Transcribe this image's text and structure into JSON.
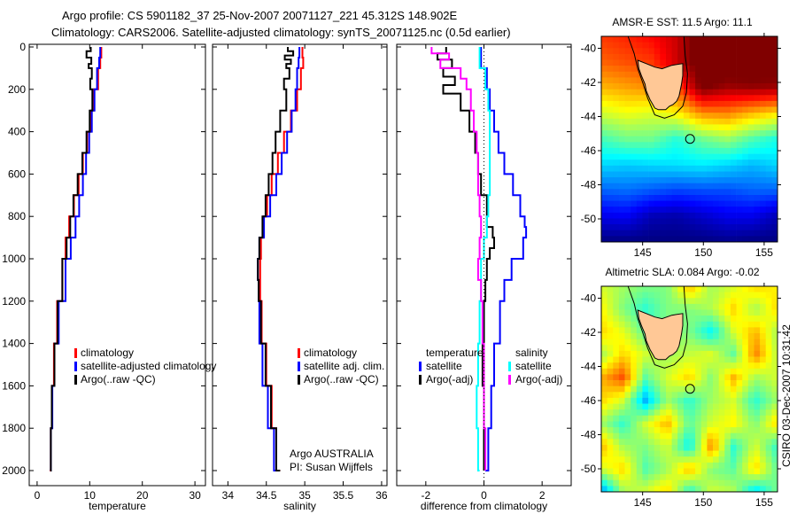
{
  "title": {
    "line1": "Argo profile: CS 5901182_37 25-Nov-2007 20071127_221 45.312S 148.902E",
    "line2": "Climatology: CARS2006. Satellite-adjusted climatology: synTS_20071125.nc (0.5d earlier)"
  },
  "credit": "CSIRO 03-Dec-2007 10:31:42",
  "chart_data": [
    {
      "type": "line",
      "xlabel": "temperature",
      "xlim": [
        -1.5,
        32
      ],
      "ylim": [
        0,
        2050
      ],
      "xticks": [
        "0",
        "10",
        "20",
        "30"
      ],
      "yticks": [
        "0",
        "200",
        "400",
        "600",
        "800",
        "1000",
        "1200",
        "1400",
        "1600",
        "1800",
        "2000"
      ],
      "legend": [
        "climatology",
        "satellite-adjusted climatology",
        "Argo(..raw -QC)"
      ],
      "series": [
        {
          "name": "climatology",
          "color": "#ff0000",
          "depth": [
            0,
            50,
            100,
            200,
            300,
            400,
            500,
            600,
            700,
            800,
            900,
            1000,
            1200,
            1400,
            1600,
            1800,
            2000
          ],
          "values": [
            12.2,
            12,
            11.6,
            10.8,
            10.2,
            9.5,
            8.7,
            7.9,
            7,
            6.1,
            5.4,
            4.8,
            3.8,
            3.2,
            2.8,
            2.6,
            2.4
          ]
        },
        {
          "name": "satellite-adjusted climatology",
          "color": "#0000ff",
          "depth": [
            0,
            50,
            100,
            200,
            300,
            400,
            500,
            600,
            700,
            800,
            900,
            1000,
            1200,
            1400,
            1600,
            1800,
            2000
          ],
          "values": [
            12,
            11.8,
            11.4,
            10.9,
            10.4,
            9.9,
            9.3,
            8.7,
            8,
            7.3,
            6.4,
            5.4,
            4.1,
            3.3,
            2.9,
            2.6,
            2.5
          ]
        },
        {
          "name": "Argo(..raw -QC)",
          "color": "#000000",
          "depth": [
            0,
            20,
            50,
            80,
            100,
            150,
            200,
            300,
            400,
            500,
            600,
            700,
            800,
            900,
            1000,
            1200,
            1400,
            1600,
            1800,
            2000
          ],
          "values": [
            10.2,
            9.4,
            10.3,
            9.8,
            10.4,
            10.1,
            10.5,
            10,
            9.4,
            8.6,
            7.7,
            6.9,
            6.3,
            5.6,
            4.8,
            3.9,
            3.3,
            2.8,
            2.6,
            2.5
          ]
        }
      ]
    },
    {
      "type": "line",
      "xlabel": "salinity",
      "xlim": [
        33.8,
        36.07
      ],
      "ylim": [
        0,
        2050
      ],
      "xticks": [
        "34",
        "34.5",
        "35",
        "35.5",
        "36"
      ],
      "legend": [
        "climatology",
        "satellite adj. clim.",
        "Argo(..raw -QC)"
      ],
      "annotation": [
        "Argo AUSTRALIA",
        "PI: Susan Wijffels"
      ],
      "series": [
        {
          "name": "climatology",
          "color": "#ff0000",
          "depth": [
            0,
            50,
            100,
            200,
            300,
            400,
            500,
            600,
            700,
            800,
            900,
            1000,
            1100,
            1200,
            1400,
            1600,
            1800,
            2000
          ],
          "values": [
            34.97,
            34.98,
            34.95,
            34.9,
            34.82,
            34.73,
            34.65,
            34.57,
            34.51,
            34.46,
            34.43,
            34.42,
            34.42,
            34.44,
            34.5,
            34.57,
            34.63,
            34.68
          ]
        },
        {
          "name": "satellite adj. clim.",
          "color": "#0000ff",
          "depth": [
            0,
            50,
            100,
            200,
            300,
            400,
            500,
            600,
            700,
            800,
            900,
            1000,
            1100,
            1200,
            1400,
            1600,
            1800,
            2000
          ],
          "values": [
            34.93,
            34.92,
            34.9,
            34.88,
            34.83,
            34.77,
            34.7,
            34.63,
            34.55,
            34.47,
            34.41,
            34.39,
            34.4,
            34.41,
            34.45,
            34.52,
            34.6,
            34.66
          ]
        },
        {
          "name": "Argo(..raw -QC)",
          "color": "#000000",
          "depth": [
            0,
            20,
            40,
            60,
            80,
            100,
            150,
            200,
            300,
            400,
            500,
            600,
            700,
            800,
            900,
            1000,
            1100,
            1200,
            1400,
            1600,
            1800,
            2000
          ],
          "values": [
            34.78,
            34.85,
            34.74,
            34.82,
            34.76,
            34.8,
            34.73,
            34.76,
            34.68,
            34.62,
            34.58,
            34.53,
            34.49,
            34.45,
            34.41,
            34.39,
            34.4,
            34.43,
            34.49,
            34.56,
            34.63,
            34.68
          ]
        }
      ]
    },
    {
      "type": "line",
      "xlabel": "difference from climatology",
      "xlim": [
        -3,
        3
      ],
      "ylim": [
        0,
        2050
      ],
      "xticks": [
        "-2",
        "0",
        "2"
      ],
      "legend_temperature": {
        "heading": "temperature",
        "items": [
          "satellite",
          "Argo(-adj)"
        ]
      },
      "legend_salinity": {
        "heading": "salinity",
        "items": [
          "satellite",
          "Argo(-adj)"
        ]
      },
      "series": [
        {
          "name": "temperature satellite",
          "color": "#0000ff",
          "depth": [
            0,
            100,
            200,
            300,
            400,
            500,
            600,
            700,
            800,
            850,
            900,
            1000,
            1100,
            1200,
            1400,
            1600,
            1800,
            2000
          ],
          "values": [
            -0.1,
            0.1,
            0.2,
            0.35,
            0.5,
            0.7,
            1.0,
            1.25,
            1.4,
            1.45,
            1.35,
            0.95,
            0.7,
            0.55,
            0.35,
            0.25,
            0.15,
            0.05
          ]
        },
        {
          "name": "temperature Argo(-adj)",
          "color": "#000000",
          "depth": [
            0,
            30,
            60,
            100,
            140,
            180,
            220,
            300,
            400,
            500,
            600,
            700,
            800,
            850,
            900,
            950,
            1000,
            1100,
            1200,
            1400,
            1600,
            1800,
            2000
          ],
          "values": [
            -1.3,
            -1.6,
            -1.1,
            -1.4,
            -1.0,
            -1.4,
            -0.8,
            -0.5,
            -0.3,
            -0.2,
            -0.1,
            0.1,
            0.1,
            0.3,
            0.35,
            0.2,
            0.1,
            0.05,
            0,
            -0.05,
            0,
            0,
            0
          ]
        },
        {
          "name": "salinity satellite",
          "color": "#00ffff",
          "depth": [
            0,
            100,
            200,
            300,
            400,
            500,
            600,
            700,
            800,
            900,
            1000,
            1200,
            1400,
            1600,
            1800,
            2000
          ],
          "values": [
            -0.15,
            0.05,
            0.15,
            0.2,
            0.2,
            0.2,
            0.2,
            0.15,
            0.1,
            0,
            -0.1,
            -0.15,
            -0.2,
            -0.25,
            -0.2,
            -0.15
          ]
        },
        {
          "name": "salinity Argo(-adj)",
          "color": "#ff00ff",
          "depth": [
            0,
            30,
            60,
            100,
            150,
            200,
            300,
            400,
            500,
            600,
            700,
            800,
            900,
            1000,
            1100,
            1200,
            1400,
            1600,
            1800,
            2000
          ],
          "values": [
            -1.8,
            -1.2,
            -1.5,
            -0.8,
            -0.6,
            -0.45,
            -0.35,
            -0.25,
            -0.2,
            -0.2,
            -0.15,
            -0.1,
            -0.15,
            -0.2,
            -0.1,
            -0.05,
            0,
            0,
            0.05,
            0.05
          ]
        }
      ]
    },
    {
      "type": "heatmap",
      "title": "AMSR-E SST: 11.5 Argo: 11.1",
      "lon": [
        141.6,
        156.1
      ],
      "lat": [
        -39.3,
        -51.35
      ],
      "xticks": [
        "145",
        "150",
        "155"
      ],
      "yticks": [
        "-40",
        "-42",
        "-44",
        "-46",
        "-48",
        "-50"
      ],
      "crange": [
        6,
        15.5
      ],
      "grid_lat": [
        -39.3,
        -40.8,
        -42.3,
        -43.8,
        -45.3,
        -46.8,
        -48.3,
        -49.8,
        -51.35
      ],
      "grid": [
        [
          13.8,
          14,
          14.3,
          14.8,
          16,
          16,
          16,
          16
        ],
        [
          13.4,
          13.6,
          13.8,
          14.8,
          16,
          16,
          16,
          16
        ],
        [
          12.6,
          12.8,
          13,
          13.6,
          15.6,
          15.2,
          15.3,
          15.2
        ],
        [
          11.5,
          11.8,
          11.6,
          12,
          13,
          13.1,
          12.6,
          12.2
        ],
        [
          10.2,
          10.6,
          10.6,
          9.9,
          10.6,
          11,
          10.3,
          9.8
        ],
        [
          9.2,
          9.1,
          9.2,
          9.3,
          9.4,
          9.2,
          8.9,
          9.2
        ],
        [
          8.1,
          8.2,
          8,
          7.8,
          7.9,
          7.9,
          8.1,
          8.1
        ],
        [
          7,
          7.1,
          6.5,
          6.4,
          6.7,
          7,
          7,
          6.5
        ],
        [
          6,
          6,
          6,
          6,
          6,
          6.1,
          6,
          6
        ]
      ],
      "argo": {
        "lon": 148.902,
        "lat": -45.312
      }
    },
    {
      "type": "heatmap",
      "title": "Altimetric SLA: 0.084 Argo: -0.02",
      "lon": [
        141.6,
        156.1
      ],
      "lat": [
        -39.3,
        -51.35
      ],
      "xticks": [
        "145",
        "150",
        "155"
      ],
      "yticks": [
        "-40",
        "-42",
        "-44",
        "-46",
        "-48",
        "-50"
      ],
      "crange": [
        -0.3,
        0.3
      ],
      "grid_lat": [
        -39.3,
        -40.6,
        -41.9,
        -43.2,
        -44.5,
        -45.8,
        -47.1,
        -48.4,
        -49.7,
        -51.35
      ],
      "grid": [
        [
          0.05,
          0.02,
          0,
          0,
          0.12,
          0.02,
          0.05,
          0.1,
          0.08
        ],
        [
          0.08,
          0,
          -0.05,
          0,
          0,
          0.03,
          0.1,
          0.02,
          0.1
        ],
        [
          0.1,
          0.06,
          -0.02,
          0,
          0,
          -0.08,
          0.05,
          0.12,
          0.02
        ],
        [
          0.02,
          0.1,
          0.05,
          0.02,
          0.04,
          0.06,
          -0.02,
          0.15,
          0.03
        ],
        [
          0.12,
          0.18,
          -0.02,
          0.05,
          0.1,
          0,
          0.12,
          0.02,
          0.05
        ],
        [
          0.1,
          0.05,
          -0.12,
          0.02,
          -0.05,
          0.02,
          0.05,
          -0.05,
          0.02
        ],
        [
          0.02,
          -0.05,
          0.05,
          0.12,
          -0.02,
          0.05,
          0.08,
          0,
          0.1
        ],
        [
          0.12,
          0.02,
          0,
          0.05,
          -0.08,
          0.15,
          -0.05,
          0.05,
          -0.05
        ],
        [
          0.05,
          0.1,
          -0.03,
          0.02,
          0.12,
          0,
          -0.02,
          0.1,
          -0.02
        ],
        [
          -0.15,
          0.02,
          0.05,
          0.1,
          -0.06,
          0.05,
          0.03,
          -0.1,
          0
        ]
      ],
      "argo": {
        "lon": 148.902,
        "lat": -45.312
      }
    }
  ]
}
